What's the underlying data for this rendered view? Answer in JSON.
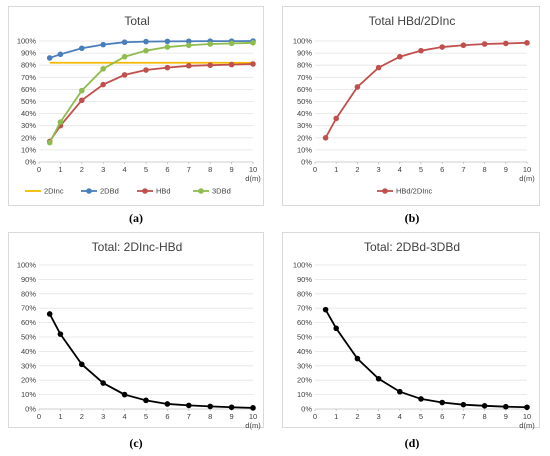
{
  "chart_data": [
    {
      "type": "line",
      "title": "Total",
      "xlabel": "d(m)",
      "ylabel": "",
      "x_ticks": [
        "0",
        "1",
        "2",
        "3",
        "4",
        "5",
        "6",
        "7",
        "8",
        "9",
        "10"
      ],
      "y_ticks": [
        "0%",
        "10%",
        "20%",
        "30%",
        "40%",
        "50%",
        "60%",
        "70%",
        "80%",
        "90%",
        "100%"
      ],
      "xlim": [
        0,
        10
      ],
      "ylim": [
        0,
        100
      ],
      "grid": true,
      "legend_position": "bottom",
      "x": [
        0.5,
        1,
        2,
        3,
        4,
        5,
        6,
        7,
        8,
        9,
        10
      ],
      "series": [
        {
          "name": "2DInc",
          "color": "#f2b800",
          "marker": "none",
          "values": [
            82,
            82,
            82,
            82,
            82,
            82,
            82,
            82,
            82,
            82,
            82
          ]
        },
        {
          "name": "2DBd",
          "color": "#4a7ebb",
          "marker": "circle",
          "values": [
            86,
            89,
            94,
            97,
            99,
            99.5,
            99.7,
            99.8,
            99.9,
            99.9,
            100
          ]
        },
        {
          "name": "HBd",
          "color": "#c0504d",
          "marker": "circle",
          "values": [
            17,
            30,
            51,
            64,
            72,
            76,
            78,
            79.5,
            80,
            80.5,
            81
          ]
        },
        {
          "name": "3DBd",
          "color": "#8fbc4f",
          "marker": "circle",
          "values": [
            16,
            33,
            59,
            77,
            87,
            92,
            95,
            96.5,
            97.5,
            98,
            98.5
          ]
        }
      ],
      "caption": "(a)"
    },
    {
      "type": "line",
      "title": "Total HBd/2DInc",
      "xlabel": "d(m)",
      "ylabel": "",
      "x_ticks": [
        "0",
        "1",
        "2",
        "3",
        "4",
        "5",
        "6",
        "7",
        "8",
        "9",
        "10"
      ],
      "y_ticks": [
        "0%",
        "10%",
        "20%",
        "30%",
        "40%",
        "50%",
        "60%",
        "70%",
        "80%",
        "90%",
        "100%"
      ],
      "xlim": [
        0,
        10
      ],
      "ylim": [
        0,
        100
      ],
      "grid": true,
      "legend_position": "bottom",
      "x": [
        0.5,
        1,
        2,
        3,
        4,
        5,
        6,
        7,
        8,
        9,
        10
      ],
      "series": [
        {
          "name": "HBd/2DInc",
          "color": "#c0504d",
          "marker": "circle",
          "values": [
            20,
            36,
            62,
            78,
            87,
            92,
            95,
            96.5,
            97.5,
            98,
            98.5
          ]
        }
      ],
      "caption": "(b)"
    },
    {
      "type": "line",
      "title": "Total: 2DInc-HBd",
      "xlabel": "d(m)",
      "ylabel": "",
      "x_ticks": [
        "0",
        "1",
        "2",
        "3",
        "4",
        "5",
        "6",
        "7",
        "8",
        "9",
        "10"
      ],
      "y_ticks": [
        "0%",
        "10%",
        "20%",
        "30%",
        "40%",
        "50%",
        "60%",
        "70%",
        "80%",
        "90%",
        "100%"
      ],
      "xlim": [
        0,
        10
      ],
      "ylim": [
        0,
        100
      ],
      "grid": true,
      "legend_position": "none",
      "x": [
        0.5,
        1,
        2,
        3,
        4,
        5,
        6,
        7,
        8,
        9,
        10
      ],
      "series": [
        {
          "color": "#000000",
          "marker": "circle",
          "values": [
            66,
            52,
            31,
            18,
            10,
            6,
            3.5,
            2.5,
            1.8,
            1.2,
            0.8
          ]
        }
      ],
      "caption": "(c)"
    },
    {
      "type": "line",
      "title": "Total: 2DBd-3DBd",
      "xlabel": "d(m)",
      "ylabel": "",
      "x_ticks": [
        "0",
        "1",
        "2",
        "3",
        "4",
        "5",
        "6",
        "7",
        "8",
        "9",
        "10"
      ],
      "y_ticks": [
        "0%",
        "10%",
        "20%",
        "30%",
        "40%",
        "50%",
        "60%",
        "70%",
        "80%",
        "90%",
        "100%"
      ],
      "xlim": [
        0,
        10
      ],
      "ylim": [
        0,
        100
      ],
      "grid": true,
      "legend_position": "none",
      "x": [
        0.5,
        1,
        2,
        3,
        4,
        5,
        6,
        7,
        8,
        9,
        10
      ],
      "series": [
        {
          "color": "#000000",
          "marker": "circle",
          "values": [
            69,
            56,
            35,
            21,
            12,
            7,
            4.5,
            3,
            2.2,
            1.6,
            1.2
          ]
        }
      ],
      "caption": "(d)"
    }
  ]
}
